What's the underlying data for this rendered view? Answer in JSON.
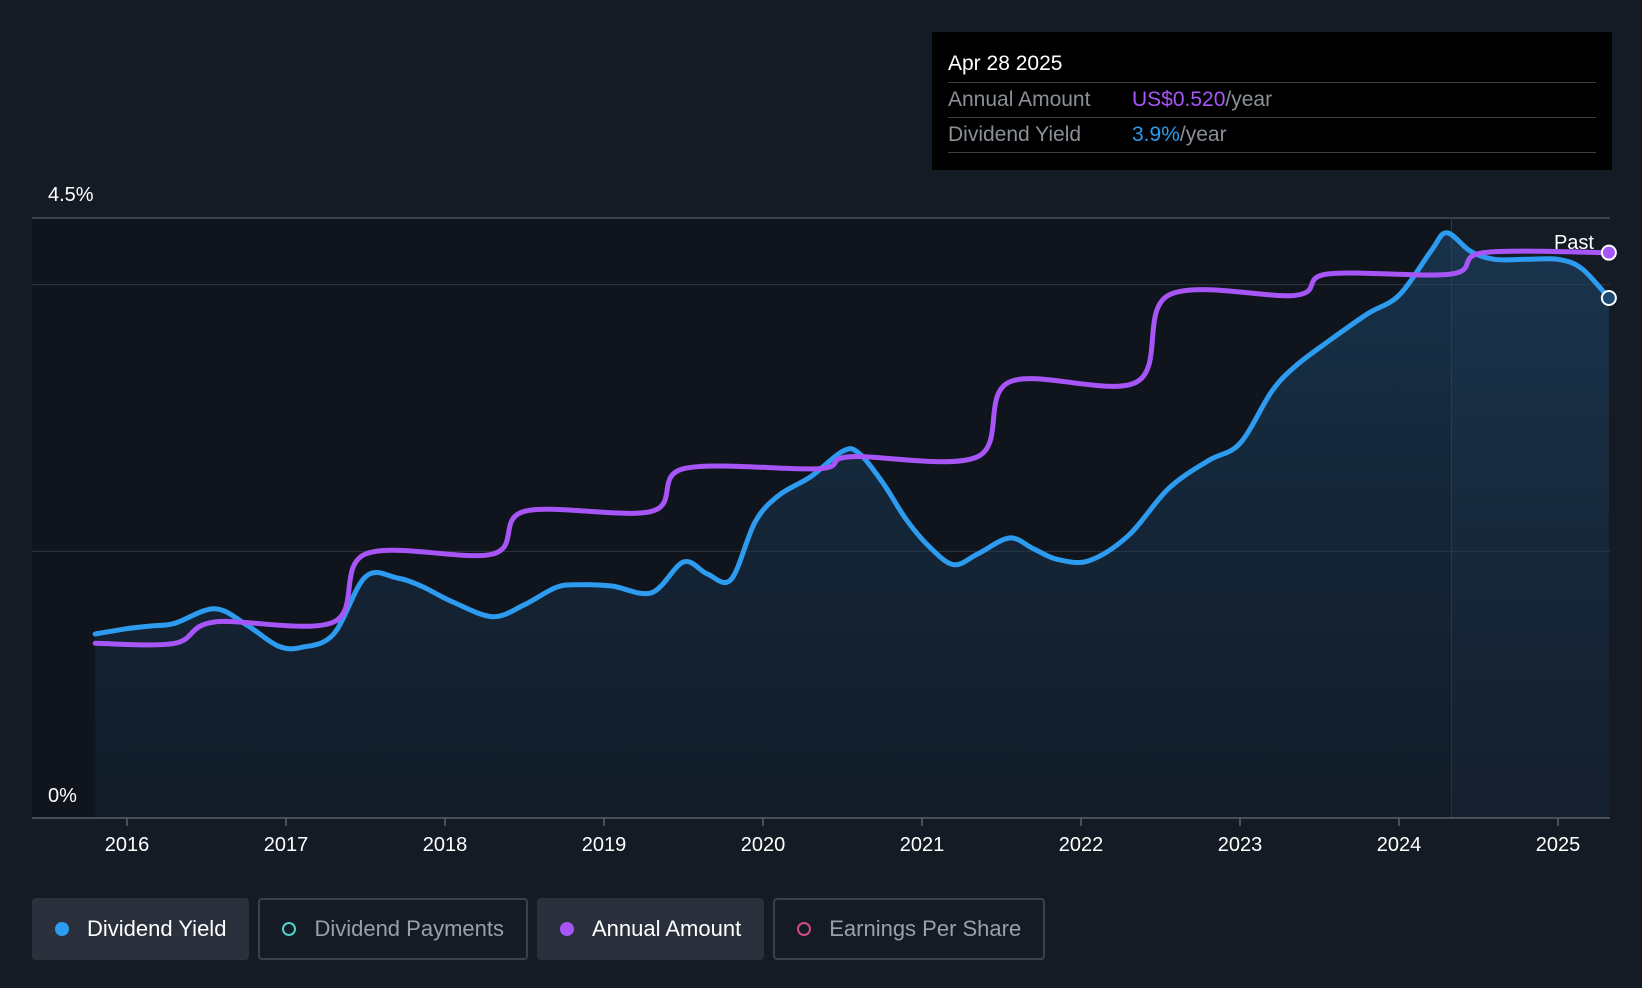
{
  "tooltip": {
    "date": "Apr 28 2025",
    "rows": [
      {
        "label": "Annual Amount",
        "value": "US$0.520",
        "suffix": "/year",
        "color": "#a855f7"
      },
      {
        "label": "Dividend Yield",
        "value": "3.9%",
        "suffix": "/year",
        "color": "#2d9cf0"
      }
    ]
  },
  "legend": [
    {
      "label": "Dividend Yield",
      "color": "#2d9cf0",
      "filled": true,
      "active": true
    },
    {
      "label": "Dividend Payments",
      "color": "#4fd1c5",
      "filled": false,
      "active": false
    },
    {
      "label": "Annual Amount",
      "color": "#a855f7",
      "filled": true,
      "active": true
    },
    {
      "label": "Earnings Per Share",
      "color": "#d04a8a",
      "filled": false,
      "active": false
    }
  ],
  "colors": {
    "background": "#151b25",
    "yield": "#2d9cf0",
    "amount": "#a855f7",
    "grid": "#3a404a"
  },
  "chart_data": {
    "type": "line",
    "y_tick_labels": [
      "0%",
      "4.5%"
    ],
    "ylim": [
      0,
      4.5
    ],
    "x_tick_labels": [
      "2016",
      "2017",
      "2018",
      "2019",
      "2020",
      "2021",
      "2022",
      "2023",
      "2024",
      "2025"
    ],
    "xlim": [
      2015.6,
      2025.32
    ],
    "past_label": "Past",
    "past_start": 2024.33,
    "series": [
      {
        "name": "Dividend Yield",
        "color": "#2d9cf0",
        "area": true,
        "x": [
          2015.8,
          2016.0,
          2016.15,
          2016.3,
          2016.55,
          2016.75,
          2016.95,
          2017.1,
          2017.3,
          2017.5,
          2017.7,
          2017.85,
          2018.05,
          2018.3,
          2018.5,
          2018.7,
          2018.85,
          2019.05,
          2019.3,
          2019.5,
          2019.65,
          2019.8,
          2019.95,
          2020.1,
          2020.3,
          2020.5,
          2020.6,
          2020.75,
          2020.9,
          2021.05,
          2021.2,
          2021.35,
          2021.55,
          2021.7,
          2021.85,
          2022.05,
          2022.3,
          2022.55,
          2022.8,
          2023.0,
          2023.2,
          2023.35,
          2023.55,
          2023.8,
          2024.0,
          2024.2,
          2024.3,
          2024.45,
          2024.6,
          2024.8,
          2025.0,
          2025.15,
          2025.32
        ],
        "values": [
          1.38,
          1.42,
          1.44,
          1.46,
          1.57,
          1.45,
          1.29,
          1.28,
          1.38,
          1.81,
          1.8,
          1.74,
          1.62,
          1.51,
          1.6,
          1.73,
          1.75,
          1.74,
          1.69,
          1.92,
          1.83,
          1.79,
          2.22,
          2.42,
          2.56,
          2.75,
          2.74,
          2.52,
          2.24,
          2.03,
          1.9,
          1.98,
          2.1,
          2.02,
          1.94,
          1.93,
          2.12,
          2.47,
          2.68,
          2.81,
          3.2,
          3.39,
          3.57,
          3.78,
          3.92,
          4.25,
          4.39,
          4.25,
          4.19,
          4.19,
          4.19,
          4.12,
          3.9
        ]
      },
      {
        "name": "Annual Amount",
        "color": "#a855f7",
        "area": false,
        "x": [
          2015.8,
          2016.3,
          2016.55,
          2017.3,
          2017.5,
          2018.3,
          2018.5,
          2019.3,
          2019.5,
          2020.35,
          2020.55,
          2021.35,
          2021.55,
          2022.35,
          2022.55,
          2023.35,
          2023.55,
          2024.33,
          2024.53,
          2025.32
        ],
        "values": [
          1.31,
          1.31,
          1.47,
          1.47,
          1.98,
          1.98,
          2.3,
          2.3,
          2.62,
          2.62,
          2.71,
          2.71,
          3.27,
          3.27,
          3.92,
          3.92,
          4.08,
          4.08,
          4.24,
          4.24
        ]
      }
    ]
  }
}
